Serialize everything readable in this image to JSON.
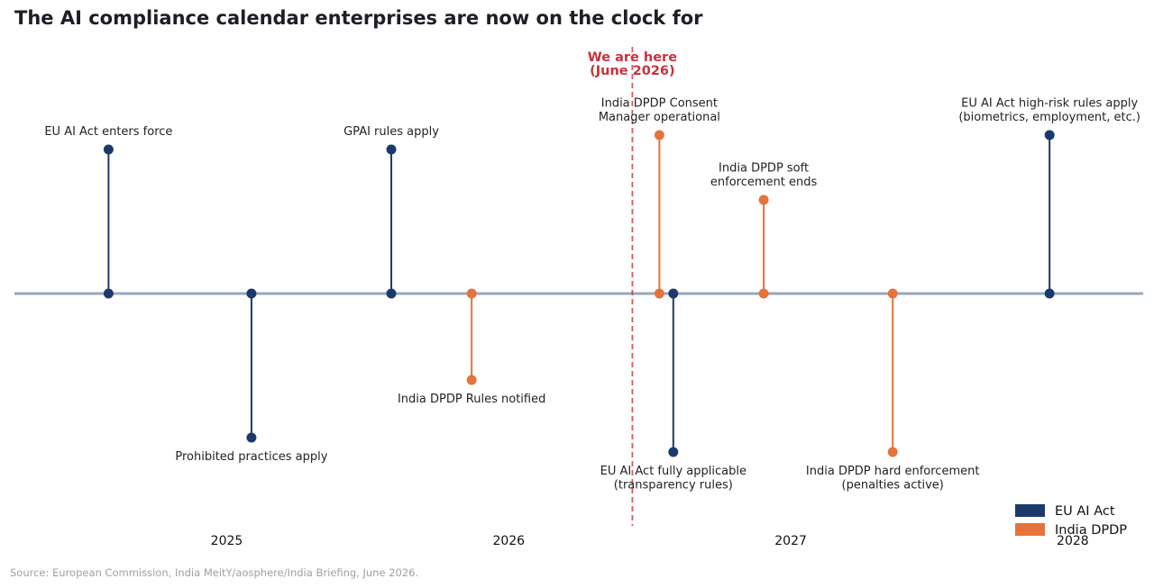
{
  "chart_data": {
    "type": "timeline",
    "title": "The AI compliance calendar enterprises are now on the clock for",
    "x_ticks": [
      "2025",
      "2026",
      "2027",
      "2028"
    ],
    "series": [
      {
        "name": "EU AI Act",
        "color": "#1b3a6b"
      },
      {
        "name": "India DPDP",
        "color": "#e5733b"
      }
    ],
    "events": [
      {
        "date": "2024-08-01",
        "series": "EU AI Act",
        "level": 1.0,
        "label": [
          "EU AI Act enters force"
        ]
      },
      {
        "date": "2025-02-02",
        "series": "EU AI Act",
        "level": -1.0,
        "label": [
          "Prohibited practices apply"
        ]
      },
      {
        "date": "2025-08-02",
        "series": "EU AI Act",
        "level": 1.0,
        "label": [
          "GPAI rules apply"
        ]
      },
      {
        "date": "2025-11-14",
        "series": "India DPDP",
        "level": -0.6,
        "label": [
          "India DPDP Rules notified"
        ]
      },
      {
        "date": "2026-07-15",
        "series": "India DPDP",
        "level": 1.1,
        "label": [
          "India DPDP Consent",
          "Manager operational"
        ]
      },
      {
        "date": "2026-08-02",
        "series": "EU AI Act",
        "level": -1.1,
        "label": [
          "EU AI Act fully applicable",
          "(transparency rules)"
        ]
      },
      {
        "date": "2026-11-27",
        "series": "India DPDP",
        "level": 0.65,
        "label": [
          "India DPDP soft",
          "enforcement ends"
        ]
      },
      {
        "date": "2027-05-13",
        "series": "India DPDP",
        "level": -1.1,
        "label": [
          "India DPDP hard enforcement",
          "(penalties active)"
        ]
      },
      {
        "date": "2027-12-02",
        "series": "EU AI Act",
        "level": 1.1,
        "label": [
          "EU AI Act high-risk rules apply",
          "(biometrics, employment, etc.)"
        ]
      }
    ],
    "now_marker": {
      "date": "2026-06-10",
      "label": [
        "We are here",
        "(June 2026)"
      ]
    },
    "legend_position": "bottom-right"
  },
  "source": "Source: European Commission, India MeitY/aosphere/India Briefing, June 2026."
}
